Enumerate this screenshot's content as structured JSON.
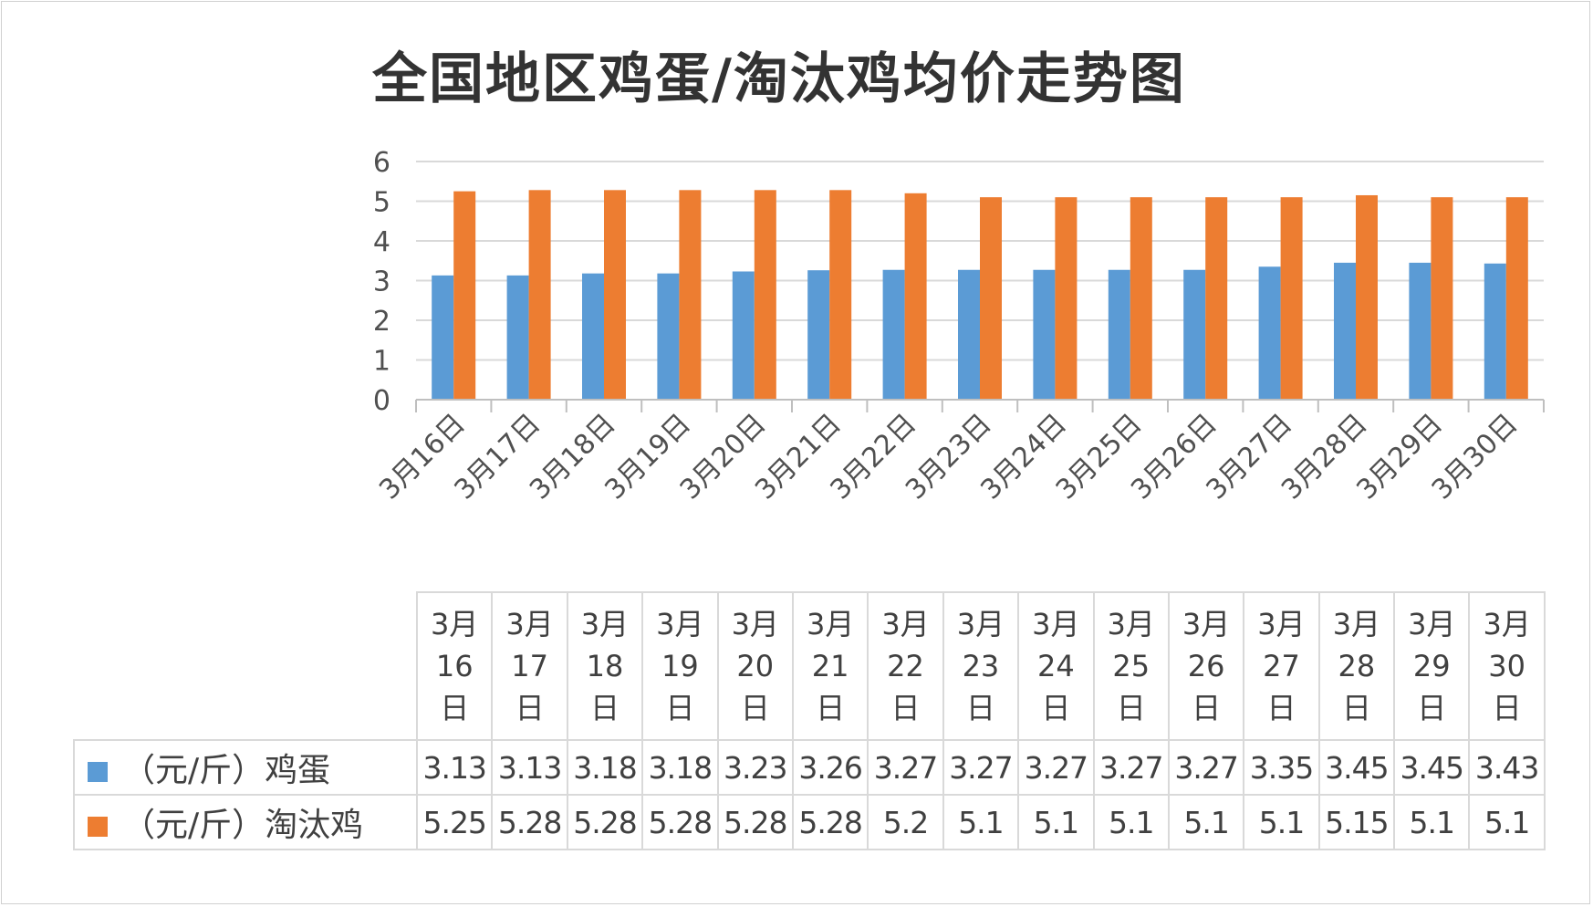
{
  "chart_data": {
    "type": "bar",
    "title": "全国地区鸡蛋/淘汰鸡均价走势图",
    "categories": [
      "3月16日",
      "3月17日",
      "3月18日",
      "3月19日",
      "3月20日",
      "3月21日",
      "3月22日",
      "3月23日",
      "3月24日",
      "3月25日",
      "3月26日",
      "3月27日",
      "3月28日",
      "3月29日",
      "3月30日"
    ],
    "table_headers": [
      [
        "3月",
        "16",
        "日"
      ],
      [
        "3月",
        "17",
        "日"
      ],
      [
        "3月",
        "18",
        "日"
      ],
      [
        "3月",
        "19",
        "日"
      ],
      [
        "3月",
        "20",
        "日"
      ],
      [
        "3月",
        "21",
        "日"
      ],
      [
        "3月",
        "22",
        "日"
      ],
      [
        "3月",
        "23",
        "日"
      ],
      [
        "3月",
        "24",
        "日"
      ],
      [
        "3月",
        "25",
        "日"
      ],
      [
        "3月",
        "26",
        "日"
      ],
      [
        "3月",
        "27",
        "日"
      ],
      [
        "3月",
        "28",
        "日"
      ],
      [
        "3月",
        "29",
        "日"
      ],
      [
        "3月",
        "30",
        "日"
      ]
    ],
    "series": [
      {
        "name": "（元/斤）鸡蛋",
        "color": "#5b9bd5",
        "values": [
          3.13,
          3.13,
          3.18,
          3.18,
          3.23,
          3.26,
          3.27,
          3.27,
          3.27,
          3.27,
          3.27,
          3.35,
          3.45,
          3.45,
          3.43
        ]
      },
      {
        "name": "（元/斤）淘汰鸡",
        "color": "#ed7d31",
        "values": [
          5.25,
          5.28,
          5.28,
          5.28,
          5.28,
          5.28,
          5.2,
          5.1,
          5.1,
          5.1,
          5.1,
          5.1,
          5.15,
          5.1,
          5.1
        ]
      }
    ],
    "ylim": [
      0,
      6
    ],
    "yticks": [
      0,
      1,
      2,
      3,
      4,
      5,
      6
    ],
    "grid": true,
    "legend": "bottom-data-table"
  }
}
